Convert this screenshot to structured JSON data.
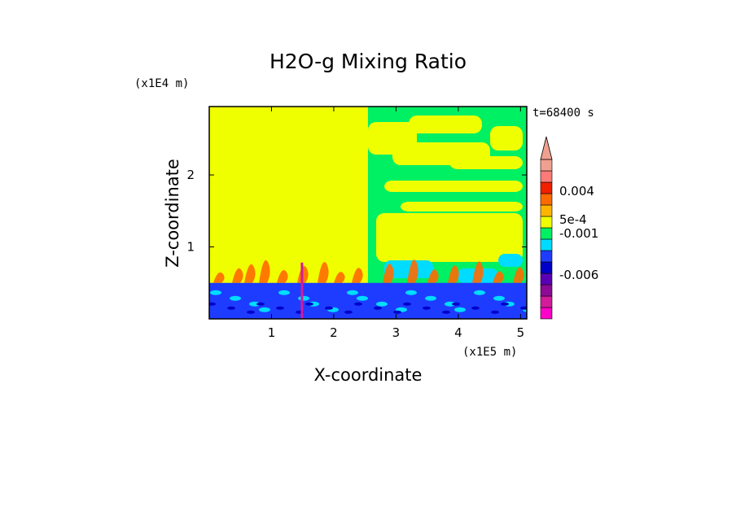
{
  "chart_data": {
    "type": "heatmap",
    "title": "H2O-g Mixing Ratio",
    "xlabel": "X-coordinate",
    "ylabel": "Z-coordinate",
    "x_unit": "(x1E5 m)",
    "y_unit": "(x1E4 m)",
    "time_label": "t=68400 s",
    "xlim": [
      0,
      5.1
    ],
    "ylim": [
      0,
      2.95
    ],
    "x_ticks": [
      {
        "value": 1,
        "label": "1"
      },
      {
        "value": 2,
        "label": "2"
      },
      {
        "value": 3,
        "label": "3"
      },
      {
        "value": 4,
        "label": "4"
      },
      {
        "value": 5,
        "label": "5"
      }
    ],
    "y_ticks": [
      {
        "value": 1,
        "label": "1"
      },
      {
        "value": 2,
        "label": "2"
      }
    ],
    "colorbar": {
      "levels": [
        "#ff00c8",
        "#d21c9c",
        "#8c0a96",
        "#5a00b4",
        "#0000c8",
        "#1e3cff",
        "#00dcff",
        "#00f064",
        "#f0ff00",
        "#ffb400",
        "#ff6a00",
        "#f02000",
        "#ff7a78",
        "#f0a090"
      ],
      "extend_top": true,
      "tick_labels": [
        "0.004",
        "5e-4",
        "-0.001",
        "-0.006"
      ]
    },
    "regions": {
      "background_color": "#f0ff00",
      "upper_right_color": "#00f064",
      "lower_band_color": "#1e3cff",
      "plume_color": "#ff6a00",
      "boundary_layer_top": 0.5,
      "split_x": 2.55
    }
  }
}
